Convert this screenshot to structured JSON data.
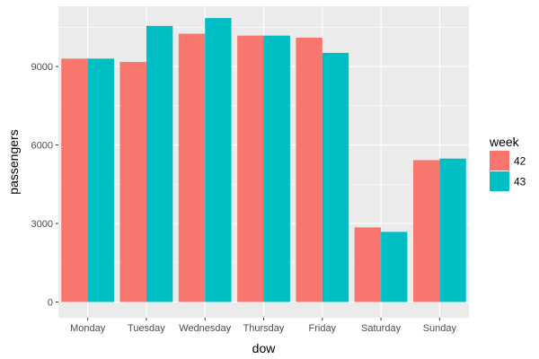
{
  "chart_data": {
    "type": "bar",
    "title": "",
    "xlabel": "dow",
    "ylabel": "passengers",
    "categories": [
      "Monday",
      "Tuesday",
      "Wednesday",
      "Thursday",
      "Friday",
      "Saturday",
      "Sunday"
    ],
    "series": [
      {
        "name": "42",
        "color": "#F8766D",
        "values": [
          9300,
          9170,
          10250,
          10180,
          10100,
          2850,
          5420
        ]
      },
      {
        "name": "43",
        "color": "#00BFC4",
        "values": [
          9300,
          10550,
          10850,
          10180,
          9520,
          2680,
          5480
        ]
      }
    ],
    "ylim": [
      -600,
      11300
    ],
    "yticks": [
      0,
      3000,
      6000,
      9000
    ],
    "ytick_labels": [
      "0",
      "3000",
      "6000",
      "9000"
    ],
    "legend": {
      "title": "week",
      "position": "right"
    },
    "grid": true
  }
}
